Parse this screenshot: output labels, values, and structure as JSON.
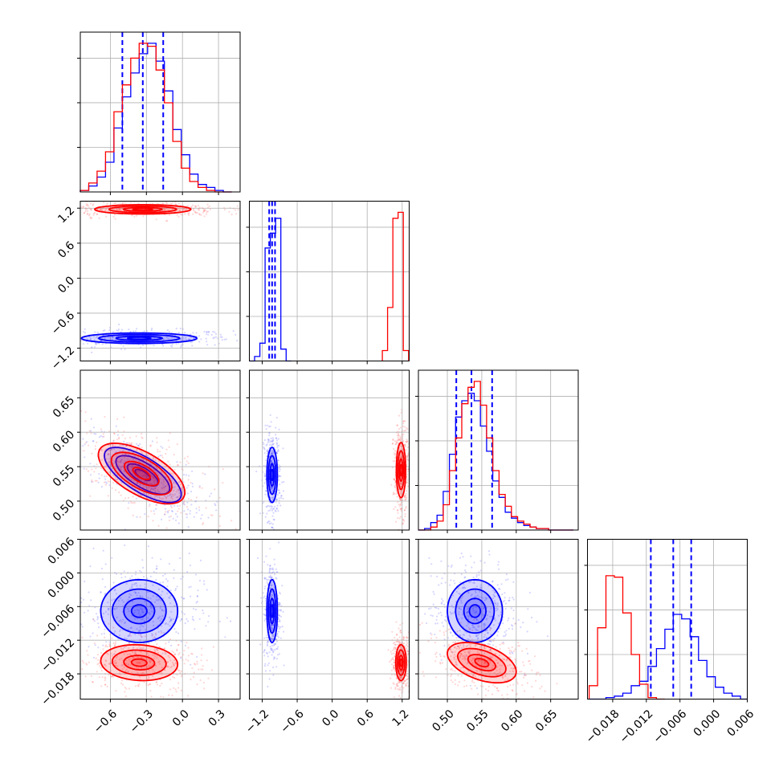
{
  "chart_data": {
    "type": "corner",
    "title": "",
    "parameters": [
      {
        "id": "p0",
        "label": "",
        "range": [
          -0.85,
          0.48
        ],
        "ticks": [
          -0.6,
          -0.3,
          0.0,
          0.3
        ],
        "tick_labels": [
          "−0.6",
          "−0.3",
          "0.0",
          "0.3"
        ]
      },
      {
        "id": "p1",
        "label": "",
        "range": [
          -1.42,
          1.32
        ],
        "ticks": [
          -1.2,
          -0.6,
          0.0,
          0.6,
          1.2
        ],
        "tick_labels": [
          "−1.2",
          "−0.6",
          "0.0",
          "0.6",
          "1.2"
        ]
      },
      {
        "id": "p2",
        "label": "",
        "range": [
          0.458,
          0.69
        ],
        "ticks": [
          0.5,
          0.55,
          0.6,
          0.65
        ],
        "tick_labels": [
          "0.50",
          "0.55",
          "0.60",
          "0.65"
        ]
      },
      {
        "id": "p3",
        "label": "",
        "range": [
          -0.0225,
          0.006
        ],
        "ticks": [
          -0.018,
          -0.012,
          -0.006,
          0.0,
          0.006
        ],
        "tick_labels": [
          "−0.018",
          "−0.012",
          "−0.006",
          "0.000",
          "0.006"
        ]
      }
    ],
    "series": [
      {
        "color": "#0000ff",
        "hist": [
          {
            "edges": [
              -0.85,
              -0.78,
              -0.71,
              -0.64,
              -0.57,
              -0.5,
              -0.43,
              -0.36,
              -0.29,
              -0.22,
              -0.15,
              -0.08,
              -0.01,
              0.06,
              0.13,
              0.2,
              0.27,
              0.34,
              0.41
            ],
            "counts": [
              0.01,
              0.04,
              0.1,
              0.2,
              0.43,
              0.64,
              0.8,
              0.93,
              1.0,
              0.88,
              0.68,
              0.42,
              0.25,
              0.12,
              0.05,
              0.03,
              0.01,
              0.0
            ]
          },
          {
            "edges": [
              -1.42,
              -1.33,
              -1.24,
              -1.15,
              -1.06,
              -0.97,
              -0.88,
              -0.79,
              -0.7
            ],
            "counts": [
              0.0,
              0.03,
              0.12,
              0.76,
              0.86,
              0.96,
              0.08,
              0.0
            ]
          },
          {
            "edges": [
              0.458,
              0.467,
              0.476,
              0.485,
              0.494,
              0.503,
              0.512,
              0.521,
              0.53,
              0.539,
              0.548,
              0.557,
              0.566,
              0.575,
              0.584,
              0.593,
              0.602,
              0.611,
              0.62,
              0.629,
              0.638,
              0.647,
              0.656,
              0.665,
              0.674,
              0.683
            ],
            "counts": [
              0.0,
              0.01,
              0.05,
              0.1,
              0.26,
              0.51,
              0.76,
              0.87,
              0.92,
              0.87,
              0.7,
              0.53,
              0.33,
              0.22,
              0.12,
              0.08,
              0.05,
              0.03,
              0.02,
              0.01,
              0.01,
              0.0,
              0.0,
              0.0,
              0.0
            ]
          },
          {
            "edges": [
              -0.0222,
              -0.0207,
              -0.0192,
              -0.0177,
              -0.0162,
              -0.0147,
              -0.0132,
              -0.0117,
              -0.0102,
              -0.0087,
              -0.0072,
              -0.0057,
              -0.0042,
              -0.0027,
              -0.0012,
              0.0003,
              0.0018,
              0.0033,
              0.0048,
              0.006
            ],
            "counts": [
              0.0,
              0.0,
              0.01,
              0.02,
              0.04,
              0.09,
              0.12,
              0.22,
              0.34,
              0.47,
              0.57,
              0.54,
              0.42,
              0.26,
              0.15,
              0.08,
              0.04,
              0.02,
              0.0
            ]
          }
        ],
        "quantiles": [
          [
            -0.5,
            -0.33,
            -0.16
          ],
          [
            -1.08,
            -1.03,
            -0.98
          ],
          [
            0.513,
            0.535,
            0.565
          ],
          [
            -0.0112,
            -0.0072,
            -0.004
          ]
        ],
        "contours": [
          {
            "x": 0,
            "y": 1,
            "cx": -0.36,
            "cy": -1.03,
            "sx": 0.24,
            "sy": 0.045,
            "rho": 0.0
          },
          {
            "x": 0,
            "y": 2,
            "cx": -0.33,
            "cy": 0.538,
            "sx": 0.16,
            "sy": 0.02,
            "rho": -0.7
          },
          {
            "x": 1,
            "y": 2,
            "cx": -1.03,
            "cy": 0.538,
            "sx": 0.045,
            "sy": 0.02,
            "rho": 0.0
          },
          {
            "x": 0,
            "y": 3,
            "cx": -0.36,
            "cy": -0.0068,
            "sx": 0.16,
            "sy": 0.0028,
            "rho": 0.0
          },
          {
            "x": 1,
            "y": 3,
            "cx": -1.03,
            "cy": -0.0068,
            "sx": 0.045,
            "sy": 0.0028,
            "rho": 0.0
          },
          {
            "x": 2,
            "y": 3,
            "cx": 0.54,
            "cy": -0.0068,
            "sx": 0.02,
            "sy": 0.0028,
            "rho": 0.0
          }
        ]
      },
      {
        "color": "#ff0000",
        "hist": [
          {
            "edges": [
              -0.85,
              -0.78,
              -0.71,
              -0.64,
              -0.57,
              -0.5,
              -0.43,
              -0.36,
              -0.29,
              -0.22,
              -0.15,
              -0.08,
              -0.01,
              0.06,
              0.13,
              0.2,
              0.27,
              0.34,
              0.41
            ],
            "counts": [
              0.01,
              0.06,
              0.14,
              0.27,
              0.54,
              0.72,
              0.9,
              1.0,
              0.98,
              0.82,
              0.6,
              0.34,
              0.16,
              0.07,
              0.03,
              0.01,
              0.0,
              0.0
            ]
          },
          {
            "edges": [
              0.86,
              0.95,
              1.04,
              1.13,
              1.22,
              1.31
            ],
            "counts": [
              0.07,
              0.36,
              0.96,
              1.0,
              0.07
            ]
          },
          {
            "edges": [
              0.458,
              0.467,
              0.476,
              0.485,
              0.494,
              0.503,
              0.512,
              0.521,
              0.53,
              0.539,
              0.548,
              0.557,
              0.566,
              0.575,
              0.584,
              0.593,
              0.602,
              0.611,
              0.62,
              0.629,
              0.638,
              0.647,
              0.656,
              0.665,
              0.674,
              0.683
            ],
            "counts": [
              0.0,
              0.0,
              0.02,
              0.06,
              0.17,
              0.4,
              0.62,
              0.85,
              0.96,
              1.0,
              0.84,
              0.62,
              0.4,
              0.24,
              0.16,
              0.09,
              0.06,
              0.04,
              0.02,
              0.01,
              0.01,
              0.0,
              0.0,
              0.0,
              0.0
            ]
          },
          {
            "edges": [
              -0.0222,
              -0.0207,
              -0.0192,
              -0.0177,
              -0.0162,
              -0.0147,
              -0.0132,
              -0.0117,
              -0.0102,
              -0.0087
            ],
            "counts": [
              0.09,
              0.48,
              0.83,
              0.82,
              0.58,
              0.3,
              0.1,
              0.01,
              0.0
            ]
          }
        ],
        "quantiles": [],
        "contours": [
          {
            "x": 0,
            "y": 1,
            "cx": -0.33,
            "cy": 1.18,
            "sx": 0.2,
            "sy": 0.04,
            "rho": 0.0
          },
          {
            "x": 0,
            "y": 2,
            "cx": -0.34,
            "cy": 0.54,
            "sx": 0.18,
            "sy": 0.022,
            "rho": -0.62
          },
          {
            "x": 1,
            "y": 2,
            "cx": 1.18,
            "cy": 0.545,
            "sx": 0.04,
            "sy": 0.02,
            "rho": 0.0
          },
          {
            "x": 0,
            "y": 3,
            "cx": -0.36,
            "cy": -0.016,
            "sx": 0.16,
            "sy": 0.0016,
            "rho": -0.1
          },
          {
            "x": 1,
            "y": 3,
            "cx": 1.18,
            "cy": -0.016,
            "sx": 0.045,
            "sy": 0.0016,
            "rho": 0.0
          },
          {
            "x": 2,
            "y": 3,
            "cx": 0.55,
            "cy": -0.016,
            "sx": 0.025,
            "sy": 0.0018,
            "rho": -0.45
          }
        ]
      }
    ],
    "grid": true,
    "legend": "none"
  }
}
